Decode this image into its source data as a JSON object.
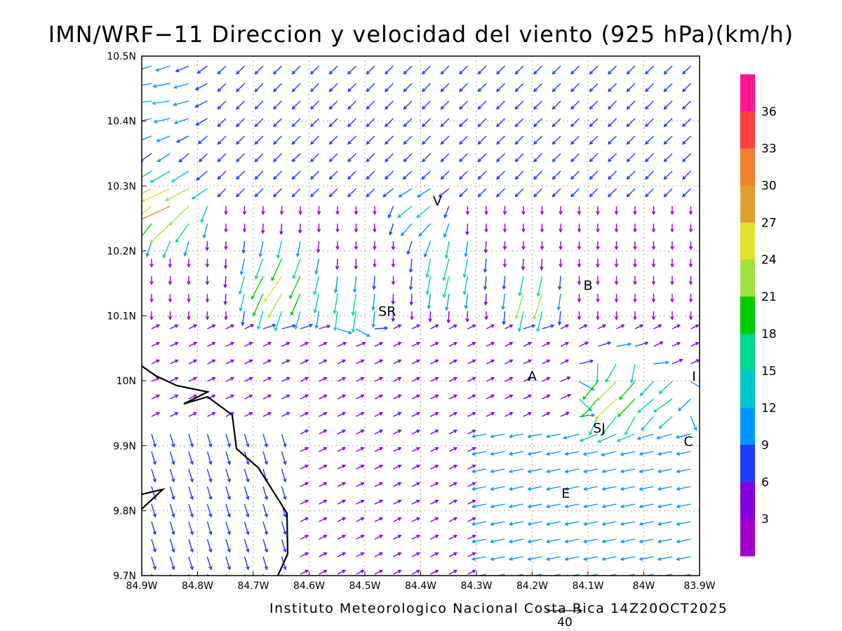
{
  "title": "IMN/WRF−11 Direccion y velocidad del viento (925 hPa)(km/h)",
  "footer": "Instituto Meteorologico Nacional Costa Rica 14Z20OCT2025",
  "ref_vector_label": "40",
  "colorbar": {
    "labels": [
      "36",
      "33",
      "30",
      "27",
      "24",
      "21",
      "18",
      "15",
      "12",
      "9",
      "6",
      "3"
    ],
    "colors": [
      "#ff1493",
      "#ff4040",
      "#f08030",
      "#e0a030",
      "#e0e030",
      "#a0e040",
      "#00cc00",
      "#00d890",
      "#00c8c8",
      "#0096ff",
      "#1e3cff",
      "#8000e0",
      "#a000c8"
    ]
  },
  "map": {
    "x_ticks": [
      "84.9W",
      "84.8W",
      "84.7W",
      "84.6W",
      "84.5W",
      "84.4W",
      "84.3W",
      "84.2W",
      "84.1W",
      "84W",
      "83.9W"
    ],
    "y_ticks": [
      "10.5N",
      "10.4N",
      "10.3N",
      "10.2N",
      "10.1N",
      "10N",
      "9.9N",
      "9.8N",
      "9.7N"
    ],
    "cities": [
      {
        "label": "V",
        "lon": -84.37,
        "lat": 10.27
      },
      {
        "label": "SR",
        "lon": -84.46,
        "lat": 10.1
      },
      {
        "label": "B",
        "lon": -84.1,
        "lat": 10.14
      },
      {
        "label": "A",
        "lon": -84.2,
        "lat": 10.0
      },
      {
        "label": "SJ",
        "lon": -84.08,
        "lat": 9.92
      },
      {
        "label": "C",
        "lon": -83.92,
        "lat": 9.9
      },
      {
        "label": "E",
        "lon": -84.14,
        "lat": 9.82
      },
      {
        "label": "I",
        "lon": -83.91,
        "lat": 10.0
      }
    ]
  }
}
